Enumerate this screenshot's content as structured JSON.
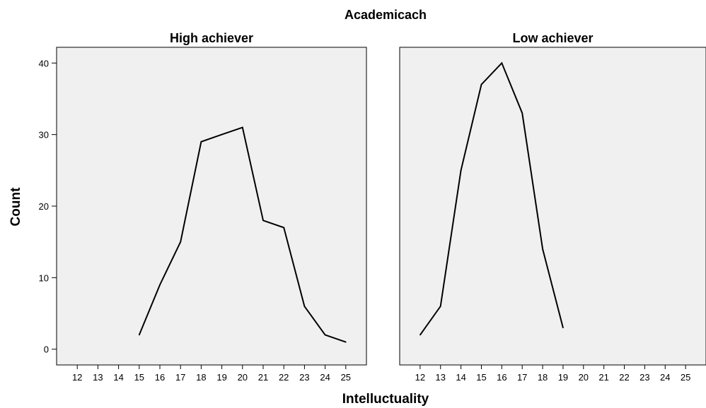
{
  "chart_data": {
    "type": "line",
    "title": "Academicach",
    "xlabel": "Intelluctuality",
    "ylabel": "Count",
    "x_ticks": [
      12,
      13,
      14,
      15,
      16,
      17,
      18,
      19,
      20,
      21,
      22,
      23,
      24,
      25
    ],
    "y_ticks": [
      0,
      10,
      20,
      30,
      40
    ],
    "xlim": [
      11,
      26
    ],
    "ylim": [
      -2.2,
      42.2
    ],
    "grid": false,
    "panels": [
      {
        "title": "High achiever",
        "x": [
          15,
          16,
          17,
          18,
          19,
          20,
          21,
          22,
          23,
          24,
          25
        ],
        "values": [
          2,
          9,
          15,
          29,
          30,
          31,
          18,
          17,
          6,
          2,
          1
        ]
      },
      {
        "title": "Low achiever",
        "x": [
          12,
          13,
          14,
          15,
          16,
          17,
          18,
          19
        ],
        "values": [
          2,
          6,
          25,
          37,
          40,
          33,
          14,
          3
        ]
      }
    ]
  }
}
